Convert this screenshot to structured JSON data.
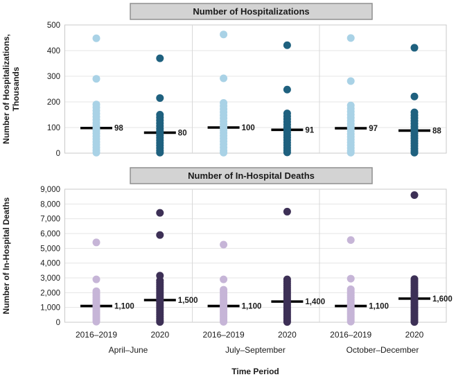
{
  "colors": {
    "hosp_2016_2019": "#a9d2e6",
    "hosp_2020": "#1f617f",
    "deaths_2016_2019": "#c6b5d7",
    "deaths_2020": "#3d3056",
    "median_line": "#000000",
    "header_fill": "#d3d3d3",
    "header_border": "#8f8f8f"
  },
  "xaxis": {
    "title": "Time Period",
    "period_labels": [
      "2016–2019",
      "2020",
      "2016–2019",
      "2020",
      "2016–2019",
      "2020"
    ],
    "quarter_labels": [
      "April–June",
      "July–September",
      "October–December"
    ]
  },
  "chart_data": [
    {
      "type": "scatter",
      "panel_title": "Number of Hospitalizations",
      "ylabel": "Number of Hospitalizations, Thousands",
      "ylabel_lines": [
        "Number of Hospitalizations,",
        "Thousands"
      ],
      "ylim": [
        0,
        500
      ],
      "ytick_values": [
        500,
        400,
        300,
        200,
        100,
        0
      ],
      "ytick_labels": [
        "500",
        "400",
        "300",
        "200",
        "100",
        "0"
      ],
      "legend": [
        "2016–2019",
        "2020"
      ],
      "groups": [
        {
          "quarter": "April–June",
          "period": "2016–2019",
          "color": "hosp_2016_2019",
          "median": 98,
          "median_label": "98",
          "values": [
            448,
            290,
            190,
            178,
            166,
            154,
            142,
            130,
            118,
            107,
            98,
            88,
            77,
            66,
            55,
            44,
            33,
            22,
            11,
            2
          ]
        },
        {
          "quarter": "April–June",
          "period": "2020",
          "color": "hosp_2020",
          "median": 80,
          "median_label": "80",
          "values": [
            370,
            215,
            150,
            139,
            128,
            117,
            106,
            95,
            85,
            80,
            70,
            60,
            50,
            40,
            30,
            20,
            10,
            2
          ]
        },
        {
          "quarter": "July–September",
          "period": "2016–2019",
          "color": "hosp_2016_2019",
          "median": 100,
          "median_label": "100",
          "values": [
            463,
            292,
            196,
            184,
            172,
            160,
            148,
            136,
            124,
            112,
            100,
            90,
            79,
            68,
            57,
            46,
            34,
            22,
            10,
            2
          ]
        },
        {
          "quarter": "July–September",
          "period": "2020",
          "color": "hosp_2020",
          "median": 91,
          "median_label": "91",
          "values": [
            421,
            248,
            155,
            144,
            133,
            122,
            111,
            100,
            91,
            81,
            71,
            61,
            51,
            41,
            31,
            21,
            11,
            3
          ]
        },
        {
          "quarter": "October–December",
          "period": "2016–2019",
          "color": "hosp_2016_2019",
          "median": 97,
          "median_label": "97",
          "values": [
            449,
            281,
            186,
            174,
            162,
            150,
            138,
            126,
            114,
            103,
            97,
            86,
            75,
            64,
            53,
            42,
            31,
            20,
            9,
            2
          ]
        },
        {
          "quarter": "October–December",
          "period": "2020",
          "color": "hosp_2020",
          "median": 88,
          "median_label": "88",
          "values": [
            411,
            221,
            159,
            148,
            137,
            126,
            115,
            104,
            94,
            88,
            78,
            68,
            58,
            48,
            38,
            28,
            18,
            8,
            2
          ]
        }
      ]
    },
    {
      "type": "scatter",
      "panel_title": "Number of In-Hospital Deaths",
      "ylabel": "Number of In-Hospital Deaths",
      "ylabel_lines": [
        "Number of In-Hospital Deaths"
      ],
      "ylim": [
        0,
        9000
      ],
      "ytick_values": [
        9000,
        8000,
        7000,
        6000,
        5000,
        4000,
        3000,
        2000,
        1000,
        0
      ],
      "ytick_labels": [
        "9,000",
        "8,000",
        "7,000",
        "6,000",
        "5,000",
        "4,000",
        "3,000",
        "2,000",
        "1,000",
        "0"
      ],
      "legend": [
        "2016–2019",
        "2020"
      ],
      "groups": [
        {
          "quarter": "April–June",
          "period": "2016–2019",
          "color": "deaths_2016_2019",
          "median": 1100,
          "median_label": "1,100",
          "values": [
            5400,
            2900,
            2100,
            1960,
            1820,
            1680,
            1540,
            1400,
            1270,
            1180,
            1100,
            1000,
            880,
            760,
            640,
            520,
            400,
            280,
            160,
            40
          ]
        },
        {
          "quarter": "April–June",
          "period": "2020",
          "color": "deaths_2020",
          "median": 1500,
          "median_label": "1,500",
          "values": [
            7400,
            5900,
            3150,
            2820,
            2680,
            2540,
            2400,
            2260,
            2120,
            1980,
            1840,
            1700,
            1560,
            1500,
            1380,
            1240,
            1100,
            960,
            820,
            680,
            540,
            400,
            260,
            120,
            20
          ]
        },
        {
          "quarter": "July–September",
          "period": "2016–2019",
          "color": "deaths_2016_2019",
          "median": 1100,
          "median_label": "1,100",
          "values": [
            5250,
            2900,
            2200,
            2060,
            1920,
            1780,
            1640,
            1500,
            1360,
            1230,
            1100,
            990,
            870,
            750,
            630,
            510,
            390,
            270,
            150,
            30
          ]
        },
        {
          "quarter": "July–September",
          "period": "2020",
          "color": "deaths_2020",
          "median": 1400,
          "median_label": "1,400",
          "values": [
            7480,
            2900,
            2760,
            2620,
            2480,
            2340,
            2200,
            2060,
            1920,
            1780,
            1640,
            1500,
            1400,
            1280,
            1150,
            1020,
            890,
            760,
            630,
            500,
            370,
            240,
            110,
            20
          ]
        },
        {
          "quarter": "October–December",
          "period": "2016–2019",
          "color": "deaths_2016_2019",
          "median": 1100,
          "median_label": "1,100",
          "values": [
            5560,
            2950,
            2230,
            2090,
            1950,
            1810,
            1670,
            1530,
            1390,
            1250,
            1100,
            1000,
            880,
            760,
            640,
            520,
            400,
            280,
            160,
            40
          ]
        },
        {
          "quarter": "October–December",
          "period": "2020",
          "color": "deaths_2020",
          "median": 1600,
          "median_label": "1,600",
          "values": [
            8600,
            2920,
            2780,
            2640,
            2500,
            2360,
            2220,
            2080,
            1940,
            1800,
            1660,
            1600,
            1480,
            1340,
            1200,
            1060,
            920,
            780,
            640,
            500,
            360,
            220,
            100,
            20
          ]
        }
      ]
    }
  ]
}
